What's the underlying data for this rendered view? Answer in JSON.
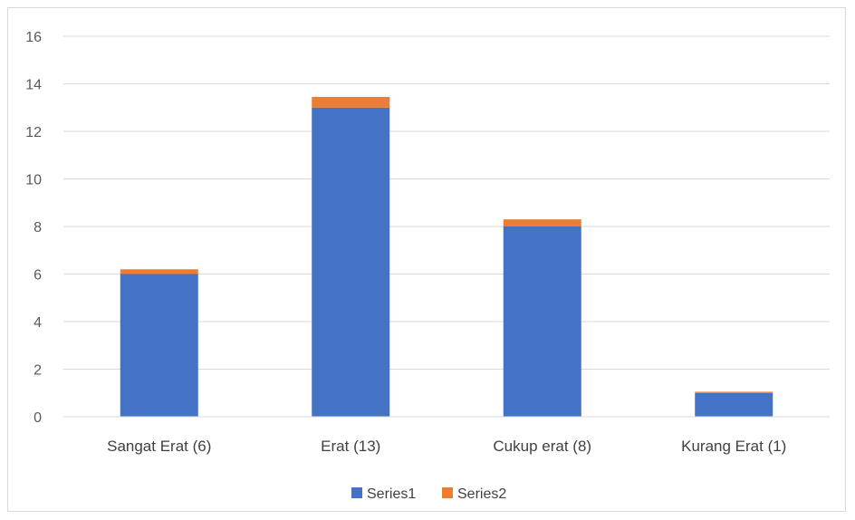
{
  "chart_data": {
    "type": "bar",
    "stacked": true,
    "categories": [
      "Sangat Erat (6)",
      "Erat (13)",
      "Cukup erat (8)",
      "Kurang Erat (1)"
    ],
    "series": [
      {
        "name": "Series1",
        "values": [
          6,
          13,
          8,
          1
        ],
        "color": "#4472C4"
      },
      {
        "name": "Series2",
        "values": [
          0.2,
          0.45,
          0.3,
          0.05
        ],
        "color": "#ED7D31"
      }
    ],
    "ylim": [
      0,
      16
    ],
    "yticks": [
      0,
      2,
      4,
      6,
      8,
      10,
      12,
      14,
      16
    ],
    "grid": true,
    "legend_position": "bottom",
    "title": "",
    "xlabel": "",
    "ylabel": ""
  }
}
